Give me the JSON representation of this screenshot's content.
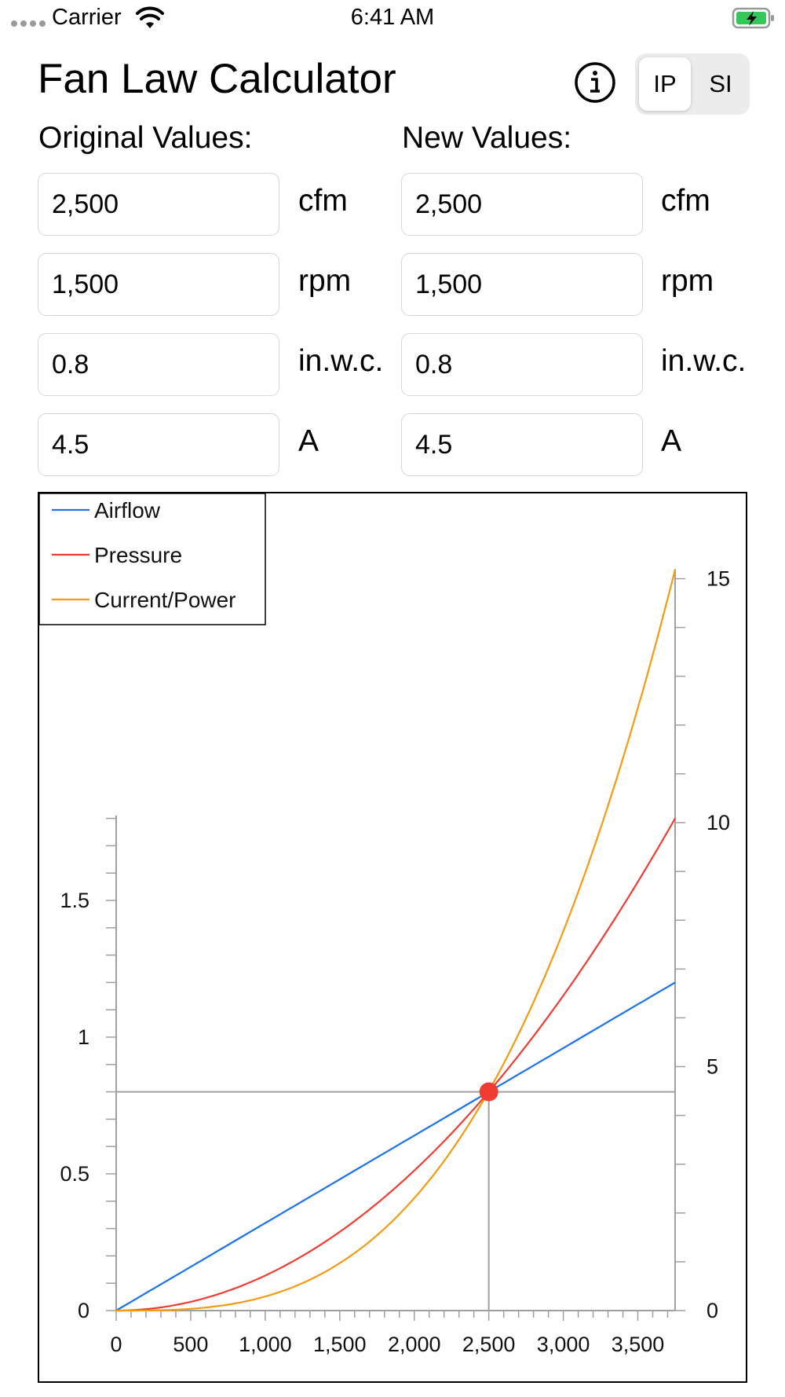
{
  "status_bar": {
    "carrier": "Carrier",
    "time": "6:41 AM"
  },
  "header": {
    "title": "Fan Law Calculator",
    "info_icon": "info-circle-icon"
  },
  "unit_toggle": {
    "options": [
      "IP",
      "SI"
    ],
    "selected": "IP"
  },
  "original": {
    "label": "Original Values:",
    "fields": [
      {
        "value": "2,500",
        "unit": "cfm"
      },
      {
        "value": "1,500",
        "unit": "rpm"
      },
      {
        "value": "0.8",
        "unit": "in.w.c."
      },
      {
        "value": "4.5",
        "unit": "A"
      }
    ]
  },
  "new": {
    "label": "New Values:",
    "fields": [
      {
        "value": "2,500",
        "unit": "cfm"
      },
      {
        "value": "1,500",
        "unit": "rpm"
      },
      {
        "value": "0.8",
        "unit": "in.w.c."
      },
      {
        "value": "4.5",
        "unit": "A"
      }
    ]
  },
  "chart_data": {
    "type": "line",
    "legend": [
      "Airflow",
      "Pressure",
      "Current/Power"
    ],
    "legend_position": "top-left",
    "colors": {
      "airflow": "#1a73e8",
      "pressure": "#f03c32",
      "current": "#f39c12",
      "axis": "#a0a0a0",
      "point": "#f03c32"
    },
    "x_ticks": [
      "0",
      "500",
      "1,000",
      "1,500",
      "2,000",
      "2,500",
      "3,000",
      "3,500"
    ],
    "x_tick_values": [
      0,
      500,
      1000,
      1500,
      2000,
      2500,
      3000,
      3500
    ],
    "xlim": [
      0,
      3750
    ],
    "y_left_ticks": [
      "0",
      "0.5",
      "1",
      "1.5"
    ],
    "y_left_tick_values": [
      0,
      0.5,
      1,
      1.5
    ],
    "y_left_lim": [
      0,
      1.8
    ],
    "y_right_ticks": [
      "0",
      "5",
      "10",
      "15"
    ],
    "y_right_tick_values": [
      0,
      5,
      10,
      15
    ],
    "y_right_lim": [
      0,
      15.2
    ],
    "operating_point": {
      "x": 2500,
      "pressure": 0.8,
      "current": 4.5
    },
    "series": [
      {
        "name": "Airflow",
        "x": [
          0,
          3750
        ],
        "y": [
          0,
          1.2
        ],
        "axis": "left"
      },
      {
        "name": "Pressure",
        "x": [
          0,
          500,
          1000,
          1500,
          2000,
          2500,
          3000,
          3500,
          3750
        ],
        "y": [
          0,
          0.032,
          0.128,
          0.288,
          0.512,
          0.8,
          1.152,
          1.568,
          1.8
        ],
        "axis": "left"
      },
      {
        "name": "Current/Power",
        "x": [
          0,
          500,
          1000,
          1500,
          2000,
          2500,
          3000,
          3500,
          3750
        ],
        "y": [
          0,
          0.036,
          0.288,
          0.972,
          2.304,
          4.5,
          7.776,
          12.348,
          15.19
        ],
        "axis": "right"
      }
    ]
  }
}
